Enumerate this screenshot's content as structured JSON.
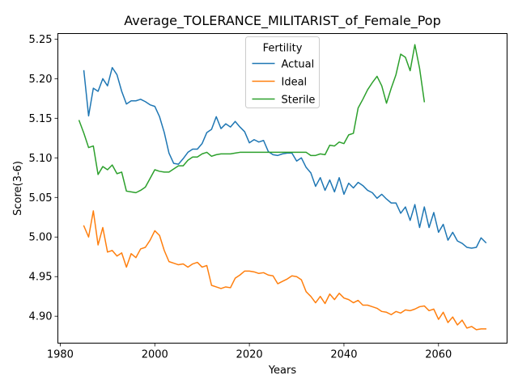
{
  "chart_data": {
    "type": "line",
    "title": "Average_TOLERANCE_MILITARIST_of_Female_Pop",
    "xlabel": "Years",
    "ylabel": "Score(3-6)",
    "xlim": [
      1979.5,
      2074.5
    ],
    "ylim": [
      4.866,
      5.257
    ],
    "xticks": [
      1980,
      2000,
      2020,
      2040,
      2060
    ],
    "yticks": [
      4.9,
      4.95,
      5.0,
      5.05,
      5.1,
      5.15,
      5.2,
      5.25
    ],
    "ytick_labels": [
      "4.90",
      "4.95",
      "5.00",
      "5.05",
      "5.10",
      "5.15",
      "5.20",
      "5.25"
    ],
    "grid": false,
    "legend": {
      "title": "Fertility",
      "position": "upper center"
    },
    "series": [
      {
        "name": "Actual",
        "color": "#1f77b4",
        "x": [
          1985,
          1986,
          1987,
          1988,
          1989,
          1990,
          1991,
          1992,
          1993,
          1994,
          1995,
          1996,
          1997,
          1998,
          1999,
          2000,
          2001,
          2002,
          2003,
          2004,
          2005,
          2006,
          2007,
          2008,
          2009,
          2010,
          2011,
          2012,
          2013,
          2014,
          2015,
          2016,
          2017,
          2018,
          2019,
          2020,
          2021,
          2022,
          2023,
          2024,
          2025,
          2026,
          2027,
          2028,
          2029,
          2030,
          2031,
          2032,
          2033,
          2034,
          2035,
          2036,
          2037,
          2038,
          2039,
          2040,
          2041,
          2042,
          2043,
          2044,
          2045,
          2046,
          2047,
          2048,
          2049,
          2050,
          2051,
          2052,
          2053,
          2054,
          2055,
          2056,
          2057,
          2058,
          2059,
          2060,
          2061,
          2062,
          2063,
          2064,
          2065,
          2066,
          2067,
          2068,
          2069,
          2070
        ],
        "values": [
          5.21,
          5.153,
          5.188,
          5.184,
          5.2,
          5.191,
          5.214,
          5.205,
          5.184,
          5.168,
          5.172,
          5.172,
          5.174,
          5.171,
          5.167,
          5.165,
          5.152,
          5.132,
          5.106,
          5.093,
          5.092,
          5.099,
          5.107,
          5.111,
          5.111,
          5.118,
          5.132,
          5.136,
          5.152,
          5.137,
          5.143,
          5.139,
          5.146,
          5.139,
          5.133,
          5.119,
          5.123,
          5.12,
          5.122,
          5.108,
          5.104,
          5.103,
          5.105,
          5.106,
          5.106,
          5.096,
          5.1,
          5.088,
          5.081,
          5.064,
          5.075,
          5.059,
          5.072,
          5.057,
          5.075,
          5.054,
          5.068,
          5.062,
          5.069,
          5.065,
          5.059,
          5.056,
          5.049,
          5.054,
          5.048,
          5.043,
          5.043,
          5.03,
          5.038,
          5.021,
          5.041,
          5.012,
          5.038,
          5.012,
          5.031,
          5.006,
          5.016,
          4.996,
          5.006,
          4.995,
          4.992,
          4.987,
          4.986,
          4.987,
          4.999,
          4.993
        ]
      },
      {
        "name": "Ideal",
        "color": "#ff7f0e",
        "x": [
          1985,
          1986,
          1987,
          1988,
          1989,
          1990,
          1991,
          1992,
          1993,
          1994,
          1995,
          1996,
          1997,
          1998,
          1999,
          2000,
          2001,
          2002,
          2003,
          2004,
          2005,
          2006,
          2007,
          2008,
          2009,
          2010,
          2011,
          2012,
          2013,
          2014,
          2015,
          2016,
          2017,
          2018,
          2019,
          2020,
          2021,
          2022,
          2023,
          2024,
          2025,
          2026,
          2027,
          2028,
          2029,
          2030,
          2031,
          2032,
          2033,
          2034,
          2035,
          2036,
          2037,
          2038,
          2039,
          2040,
          2041,
          2042,
          2043,
          2044,
          2045,
          2046,
          2047,
          2048,
          2049,
          2050,
          2051,
          2052,
          2053,
          2054,
          2055,
          2056,
          2057,
          2058,
          2059,
          2060,
          2061,
          2062,
          2063,
          2064,
          2065,
          2066,
          2067,
          2068,
          2069,
          2070
        ],
        "values": [
          5.014,
          5.0,
          5.033,
          4.99,
          5.012,
          4.981,
          4.983,
          4.976,
          4.98,
          4.962,
          4.979,
          4.974,
          4.985,
          4.987,
          4.996,
          5.008,
          5.002,
          4.983,
          4.969,
          4.967,
          4.965,
          4.966,
          4.962,
          4.966,
          4.968,
          4.962,
          4.964,
          4.939,
          4.937,
          4.935,
          4.937,
          4.936,
          4.948,
          4.952,
          4.957,
          4.957,
          4.956,
          4.954,
          4.955,
          4.952,
          4.951,
          4.941,
          4.944,
          4.947,
          4.951,
          4.95,
          4.946,
          4.931,
          4.925,
          4.917,
          4.925,
          4.916,
          4.928,
          4.921,
          4.929,
          4.923,
          4.921,
          4.917,
          4.92,
          4.914,
          4.914,
          4.912,
          4.91,
          4.906,
          4.905,
          4.902,
          4.906,
          4.904,
          4.908,
          4.907,
          4.909,
          4.912,
          4.913,
          4.907,
          4.909,
          4.896,
          4.905,
          4.892,
          4.899,
          4.889,
          4.895,
          4.885,
          4.887,
          4.883,
          4.884,
          4.884
        ]
      },
      {
        "name": "Sterile",
        "color": "#2ca02c",
        "x": [
          1984,
          1985,
          1986,
          1987,
          1988,
          1989,
          1990,
          1991,
          1992,
          1993,
          1994,
          1995,
          1996,
          1997,
          1998,
          1999,
          2000,
          2001,
          2002,
          2003,
          2004,
          2005,
          2006,
          2007,
          2008,
          2009,
          2010,
          2011,
          2012,
          2013,
          2014,
          2015,
          2016,
          2017,
          2018,
          2019,
          2020,
          2021,
          2022,
          2023,
          2024,
          2025,
          2026,
          2027,
          2028,
          2029,
          2030,
          2031,
          2032,
          2033,
          2034,
          2035,
          2036,
          2037,
          2038,
          2039,
          2040,
          2041,
          2042,
          2043,
          2044,
          2045,
          2046,
          2047,
          2048,
          2049,
          2050,
          2051,
          2052,
          2053,
          2054,
          2055,
          2056,
          2057
        ],
        "values": [
          5.147,
          5.131,
          5.113,
          5.115,
          5.079,
          5.089,
          5.085,
          5.091,
          5.08,
          5.082,
          5.058,
          5.057,
          5.056,
          5.059,
          5.063,
          5.074,
          5.085,
          5.083,
          5.082,
          5.082,
          5.086,
          5.09,
          5.09,
          5.097,
          5.101,
          5.101,
          5.105,
          5.107,
          5.102,
          5.104,
          5.105,
          5.105,
          5.105,
          5.106,
          5.107,
          5.107,
          5.107,
          5.107,
          5.107,
          5.107,
          5.107,
          5.107,
          5.107,
          5.107,
          5.107,
          5.107,
          5.107,
          5.107,
          5.107,
          5.103,
          5.103,
          5.105,
          5.104,
          5.116,
          5.115,
          5.12,
          5.118,
          5.129,
          5.131,
          5.163,
          5.174,
          5.186,
          5.195,
          5.203,
          5.191,
          5.169,
          5.188,
          5.205,
          5.231,
          5.227,
          5.21,
          5.243,
          5.213,
          5.171
        ]
      }
    ]
  }
}
